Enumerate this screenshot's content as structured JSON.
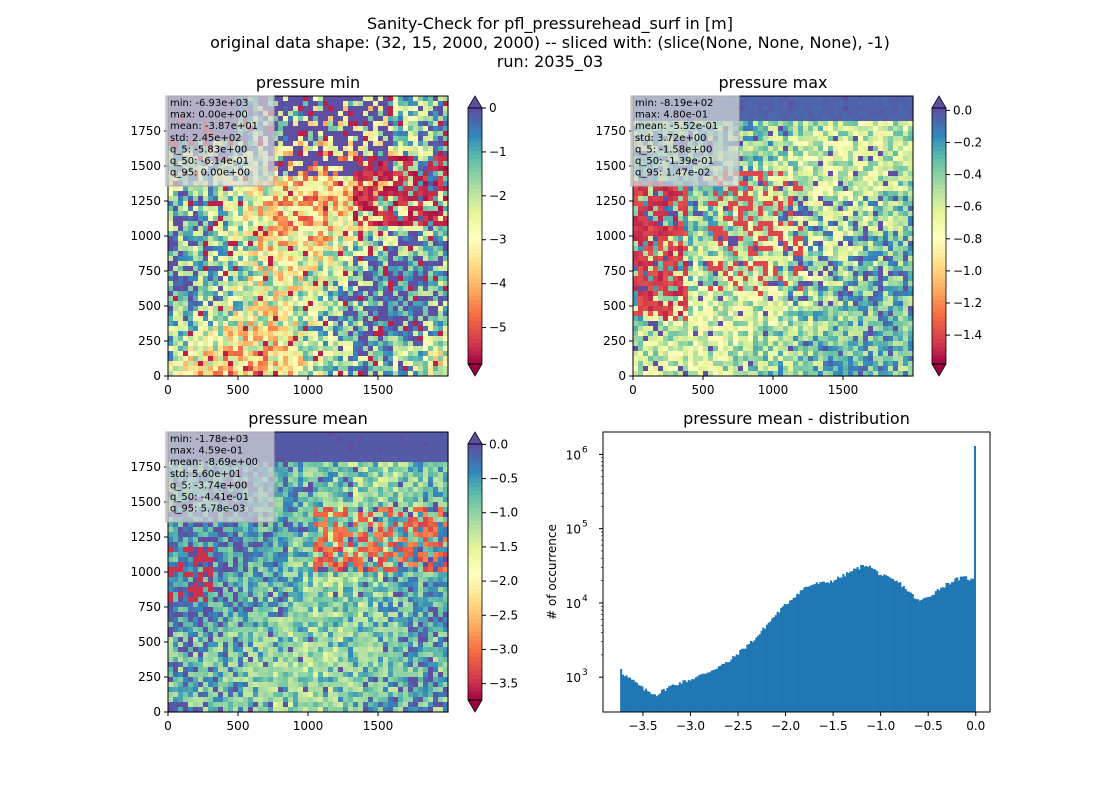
{
  "figure": {
    "title_lines": [
      "Sanity-Check for pfl_pressurehead_surf in [m]",
      "original data shape: (32, 15, 2000, 2000) -- sliced with: (slice(None, None, None), -1)",
      "run: 2035_03"
    ]
  },
  "chart_data": [
    {
      "type": "heatmap",
      "title": "pressure min",
      "colormap": "Spectral",
      "xlim": [
        0,
        2000
      ],
      "ylim": [
        0,
        2000
      ],
      "xticks": [
        0,
        500,
        1000,
        1500
      ],
      "yticks": [
        0,
        250,
        500,
        750,
        1000,
        1250,
        1500,
        1750
      ],
      "colorbar": {
        "vmin": -5.83,
        "vmax": 0,
        "ticks": [
          0,
          -1,
          -2,
          -3,
          -4,
          -5
        ],
        "tick_labels": [
          "0",
          "−1",
          "−2",
          "−3",
          "−4",
          "−5"
        ],
        "extend_top_color": "#5e4fa2",
        "extend_bottom_color": "#9e0142"
      },
      "stats": [
        "min: -6.93e+03",
        "max: 0.00e+00",
        "mean: -3.87e+01",
        "std: 2.45e+02",
        "q_5: -5.83e+00",
        "q_50: -6.14e-01",
        "q_95: 0.00e+00"
      ]
    },
    {
      "type": "heatmap",
      "title": "pressure max",
      "colormap": "Spectral",
      "xlim": [
        0,
        2000
      ],
      "ylim": [
        0,
        2000
      ],
      "xticks": [
        0,
        500,
        1000,
        1500
      ],
      "yticks": [
        0,
        250,
        500,
        750,
        1000,
        1250,
        1500,
        1750
      ],
      "colorbar": {
        "vmin": -1.58,
        "vmax": 0.0147,
        "ticks": [
          0.0,
          -0.2,
          -0.4,
          -0.6,
          -0.8,
          -1.0,
          -1.2,
          -1.4
        ],
        "tick_labels": [
          "0.0",
          "−0.2",
          "−0.4",
          "−0.6",
          "−0.8",
          "−1.0",
          "−1.2",
          "−1.4"
        ],
        "extend_top_color": "#5e4fa2",
        "extend_bottom_color": "#9e0142"
      },
      "stats": [
        "min: -8.19e+02",
        "max: 4.80e-01",
        "mean: -5.52e-01",
        "std: 3.72e+00",
        "q_5: -1.58e+00",
        "q_50: -1.39e-01",
        "q_95: 1.47e-02"
      ]
    },
    {
      "type": "heatmap",
      "title": "pressure mean",
      "colormap": "Spectral",
      "xlim": [
        0,
        2000
      ],
      "ylim": [
        0,
        2000
      ],
      "xticks": [
        0,
        500,
        1000,
        1500
      ],
      "yticks": [
        0,
        250,
        500,
        750,
        1000,
        1250,
        1500,
        1750
      ],
      "colorbar": {
        "vmin": -3.74,
        "vmax": 0.00578,
        "ticks": [
          0.0,
          -0.5,
          -1.0,
          -1.5,
          -2.0,
          -2.5,
          -3.0,
          -3.5
        ],
        "tick_labels": [
          "0.0",
          "−0.5",
          "−1.0",
          "−1.5",
          "−2.0",
          "−2.5",
          "−3.0",
          "−3.5"
        ],
        "extend_top_color": "#5e4fa2",
        "extend_bottom_color": "#9e0142"
      },
      "stats": [
        "min: -1.78e+03",
        "max: 4.59e-01",
        "mean: -8.69e+00",
        "std: 5.60e+01",
        "q_5: -3.74e+00",
        "q_50: -4.41e-01",
        "q_95: 5.78e-03"
      ]
    },
    {
      "type": "bar",
      "title": "pressure mean - distribution",
      "ylabel": "# of occurrence",
      "yscale": "log",
      "xlim": [
        -3.92,
        0.15
      ],
      "ylim": [
        340,
        2000000
      ],
      "xticks": [
        -3.5,
        -3.0,
        -2.5,
        -2.0,
        -1.5,
        -1.0,
        -0.5,
        0.0
      ],
      "xtick_labels": [
        "−3.5",
        "−3.0",
        "−2.5",
        "−2.0",
        "−1.5",
        "−1.0",
        "−0.5",
        "0.0"
      ],
      "ytick_exponents": [
        3,
        4,
        5,
        6
      ],
      "bar_color": "#1f77b4",
      "histogram_knots": [
        [
          -3.74,
          1500
        ],
        [
          -3.72,
          1150
        ],
        [
          -3.66,
          1000
        ],
        [
          -3.58,
          850
        ],
        [
          -3.5,
          700
        ],
        [
          -3.42,
          620
        ],
        [
          -3.35,
          580
        ],
        [
          -3.3,
          650
        ],
        [
          -3.2,
          770
        ],
        [
          -3.1,
          850
        ],
        [
          -3.0,
          930
        ],
        [
          -2.9,
          1050
        ],
        [
          -2.8,
          1200
        ],
        [
          -2.7,
          1400
        ],
        [
          -2.6,
          1600
        ],
        [
          -2.5,
          2100
        ],
        [
          -2.4,
          2700
        ],
        [
          -2.3,
          3500
        ],
        [
          -2.2,
          5000
        ],
        [
          -2.1,
          7000
        ],
        [
          -2.0,
          9500
        ],
        [
          -1.9,
          12500
        ],
        [
          -1.8,
          16000
        ],
        [
          -1.7,
          18000
        ],
        [
          -1.6,
          18500
        ],
        [
          -1.5,
          20000
        ],
        [
          -1.4,
          23000
        ],
        [
          -1.3,
          27000
        ],
        [
          -1.2,
          31000
        ],
        [
          -1.15,
          33000
        ],
        [
          -1.1,
          30000
        ],
        [
          -1.0,
          24000
        ],
        [
          -0.9,
          21000
        ],
        [
          -0.8,
          18500
        ],
        [
          -0.7,
          14000
        ],
        [
          -0.6,
          10500
        ],
        [
          -0.5,
          12000
        ],
        [
          -0.4,
          15000
        ],
        [
          -0.3,
          18000
        ],
        [
          -0.2,
          21000
        ],
        [
          -0.1,
          22000
        ],
        [
          -0.03,
          20000
        ],
        [
          -0.01,
          25000
        ],
        [
          0.0,
          1300000
        ]
      ]
    }
  ]
}
